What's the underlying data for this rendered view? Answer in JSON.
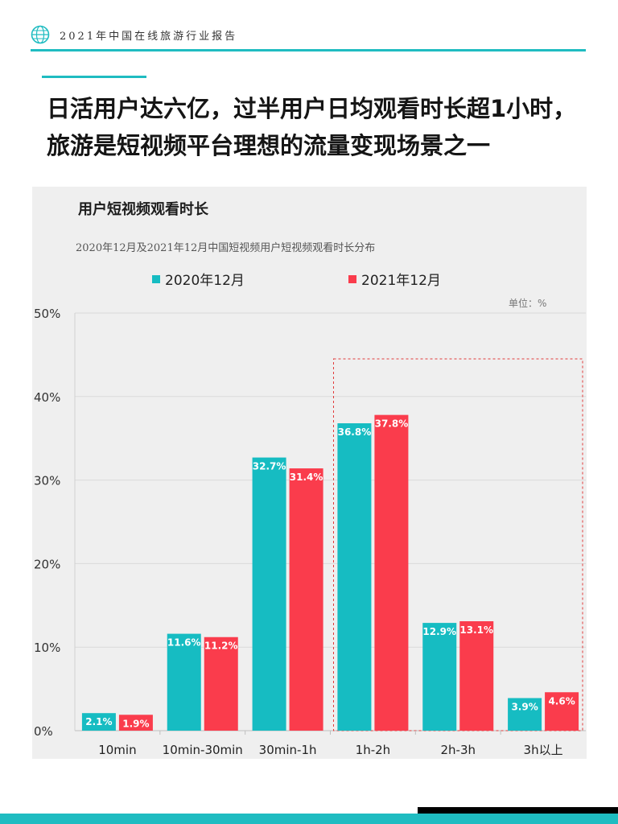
{
  "header": {
    "title": "2021年中国在线旅游行业报告",
    "logo_icon": "globe-icon"
  },
  "headline": "日活用户达六亿，过半用户日均观看时长超1小时，旅游是短视频平台理想的流量变现场景之一",
  "colors": {
    "accent": "#1fbcc1",
    "series_2020": "#16bcc2",
    "series_2021": "#fa3c4c",
    "highlight_box": "#e23b3b"
  },
  "unit": "单位：%",
  "chart_data": {
    "type": "bar",
    "title": "用户短视频观看时长",
    "subtitle": "2020年12月及2021年12月中国短视频用户短视频观看时长分布",
    "categories": [
      "10min",
      "10min-30min",
      "30min-1h",
      "1h-2h",
      "2h-3h",
      "3h以上"
    ],
    "series": [
      {
        "name": "2020年12月",
        "values": [
          2.1,
          11.6,
          32.7,
          36.8,
          12.9,
          3.9
        ],
        "labels": [
          "2.1%",
          "11.6%",
          "32.7%",
          "36.8%",
          "12.9%",
          "3.9%"
        ]
      },
      {
        "name": "2021年12月",
        "values": [
          1.9,
          11.2,
          31.4,
          37.8,
          13.1,
          4.6
        ],
        "labels": [
          "1.9%",
          "11.2%",
          "31.4%",
          "37.8%",
          "13.1%",
          "4.6%"
        ]
      }
    ],
    "ylim": [
      0,
      50
    ],
    "yticks": [
      0,
      10,
      20,
      30,
      40,
      50
    ],
    "ytick_labels": [
      "0%",
      "10%",
      "20%",
      "30%",
      "40%",
      "50%"
    ],
    "grid": true,
    "legend_position": "top",
    "highlight_categories": [
      "1h-2h",
      "2h-3h",
      "3h以上"
    ]
  }
}
